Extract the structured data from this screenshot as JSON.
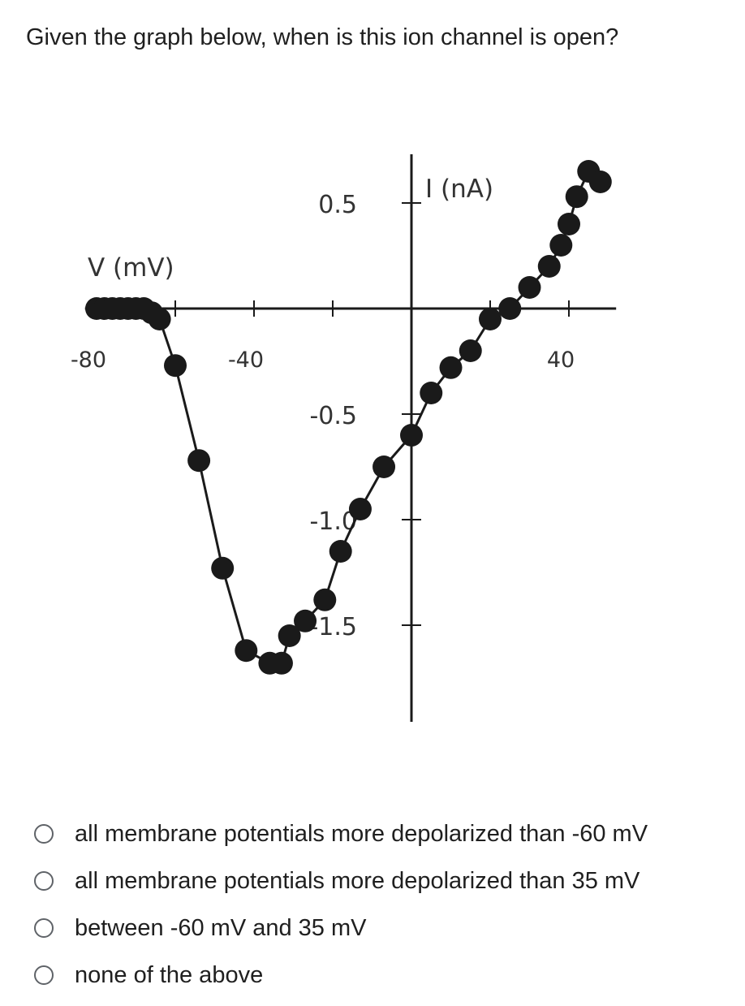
{
  "question": "Given the graph below, when is this ion channel is open?",
  "chart_data": {
    "type": "line",
    "xlabel": "V (mV)",
    "ylabel": "I (nA)",
    "xlim": [
      -85,
      52
    ],
    "ylim": [
      -1.9,
      0.75
    ],
    "grid": false,
    "x_ticks": [
      -80,
      -60,
      -40,
      -20,
      0,
      20,
      40
    ],
    "x_tick_labels": [
      {
        "value": -80,
        "label": "-80"
      },
      {
        "value": -40,
        "label": "-40"
      },
      {
        "value": 40,
        "label": "40"
      }
    ],
    "y_ticks": [
      0.5,
      -0.5,
      -1.0,
      -1.5
    ],
    "y_tick_labels": [
      {
        "value": 0.5,
        "label": "0.5"
      },
      {
        "value": -0.5,
        "label": "-0.5"
      },
      {
        "value": -1.0,
        "label": "-1.0"
      },
      {
        "value": -1.5,
        "label": "-1.5"
      }
    ],
    "series": [
      {
        "color": "#1a1a1a",
        "x": [
          -80,
          -78,
          -76,
          -74,
          -72,
          -70,
          -68,
          -66,
          -64,
          -60,
          -54,
          -48,
          -42,
          -36,
          -33,
          -31,
          -27,
          -22,
          -18,
          -13,
          -7,
          0,
          5,
          10,
          15,
          20,
          25,
          30,
          35,
          38,
          40,
          42,
          45,
          48
        ],
        "y": [
          0.0,
          0.0,
          0.0,
          0.0,
          0.0,
          0.0,
          0.0,
          -0.02,
          -0.05,
          -0.27,
          -0.72,
          -1.23,
          -1.62,
          -1.68,
          -1.68,
          -1.55,
          -1.48,
          -1.38,
          -1.15,
          -0.95,
          -0.75,
          -0.6,
          -0.4,
          -0.28,
          -0.2,
          -0.05,
          0.0,
          0.1,
          0.2,
          0.3,
          0.4,
          0.53,
          0.65,
          0.6
        ]
      }
    ]
  },
  "options": [
    {
      "label": "all membrane potentials more depolarized than -60 mV"
    },
    {
      "label": "all membrane potentials more depolarized than 35 mV"
    },
    {
      "label": "between -60 mV and 35 mV"
    },
    {
      "label": "none of the above"
    }
  ]
}
